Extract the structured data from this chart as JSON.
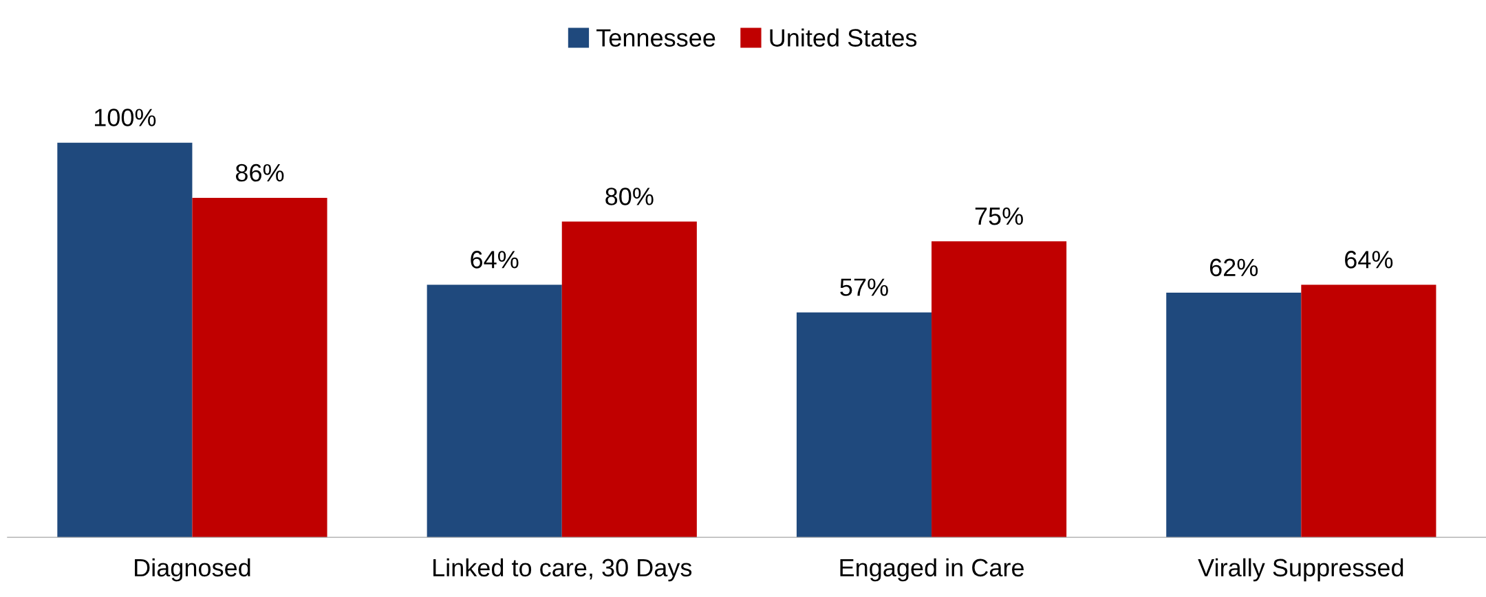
{
  "chart_data": {
    "type": "bar",
    "categories": [
      "Diagnosed",
      "Linked to care, 30 Days",
      "Engaged in Care",
      "Virally Suppressed"
    ],
    "series": [
      {
        "name": "Tennessee",
        "color": "#1f497d",
        "values": [
          100,
          64,
          57,
          62
        ],
        "value_labels": [
          "100%",
          "64%",
          "57%",
          "62%"
        ]
      },
      {
        "name": "United States",
        "color": "#c00000",
        "values": [
          86,
          80,
          75,
          64
        ],
        "value_labels": [
          "86%",
          "80%",
          "75%",
          "64%"
        ]
      }
    ],
    "legend": "top",
    "grid": false,
    "tick_labels": "x"
  }
}
